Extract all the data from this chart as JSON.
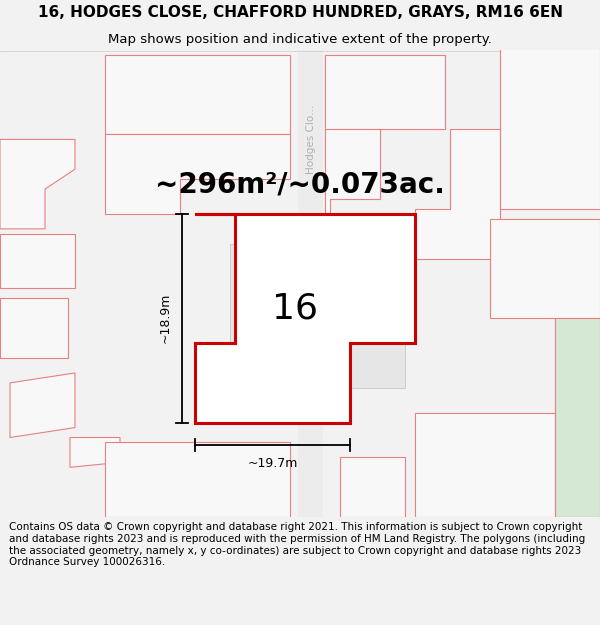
{
  "title_line1": "16, HODGES CLOSE, CHAFFORD HUNDRED, GRAYS, RM16 6EN",
  "title_line2": "Map shows position and indicative extent of the property.",
  "area_text": "~296m²/~0.073ac.",
  "label_16": "16",
  "dim_height": "~18.9m",
  "dim_width": "~19.7m",
  "street_label": "Hodges Clo...",
  "footer_text": "Contains OS data © Crown copyright and database right 2021. This information is subject to Crown copyright and database rights 2023 and is reproduced with the permission of HM Land Registry. The polygons (including the associated geometry, namely x, y co-ordinates) are subject to Crown copyright and database rights 2023 Ordnance Survey 100026316.",
  "bg_color": "#f2f2f2",
  "map_bg": "#ffffff",
  "plot_fill": "#e6e6e6",
  "plot_stroke": "#cc0000",
  "neighbor_stroke": "#e88080",
  "neighbor_fill": "#f8f8f8",
  "green_fill": "#d4e8d4",
  "road_color": "#ebebeb",
  "title_fontsize": 11,
  "subtitle_fontsize": 9.5,
  "footer_fontsize": 7.5,
  "area_fontsize": 20,
  "num_fontsize": 26,
  "dim_fontsize": 9
}
